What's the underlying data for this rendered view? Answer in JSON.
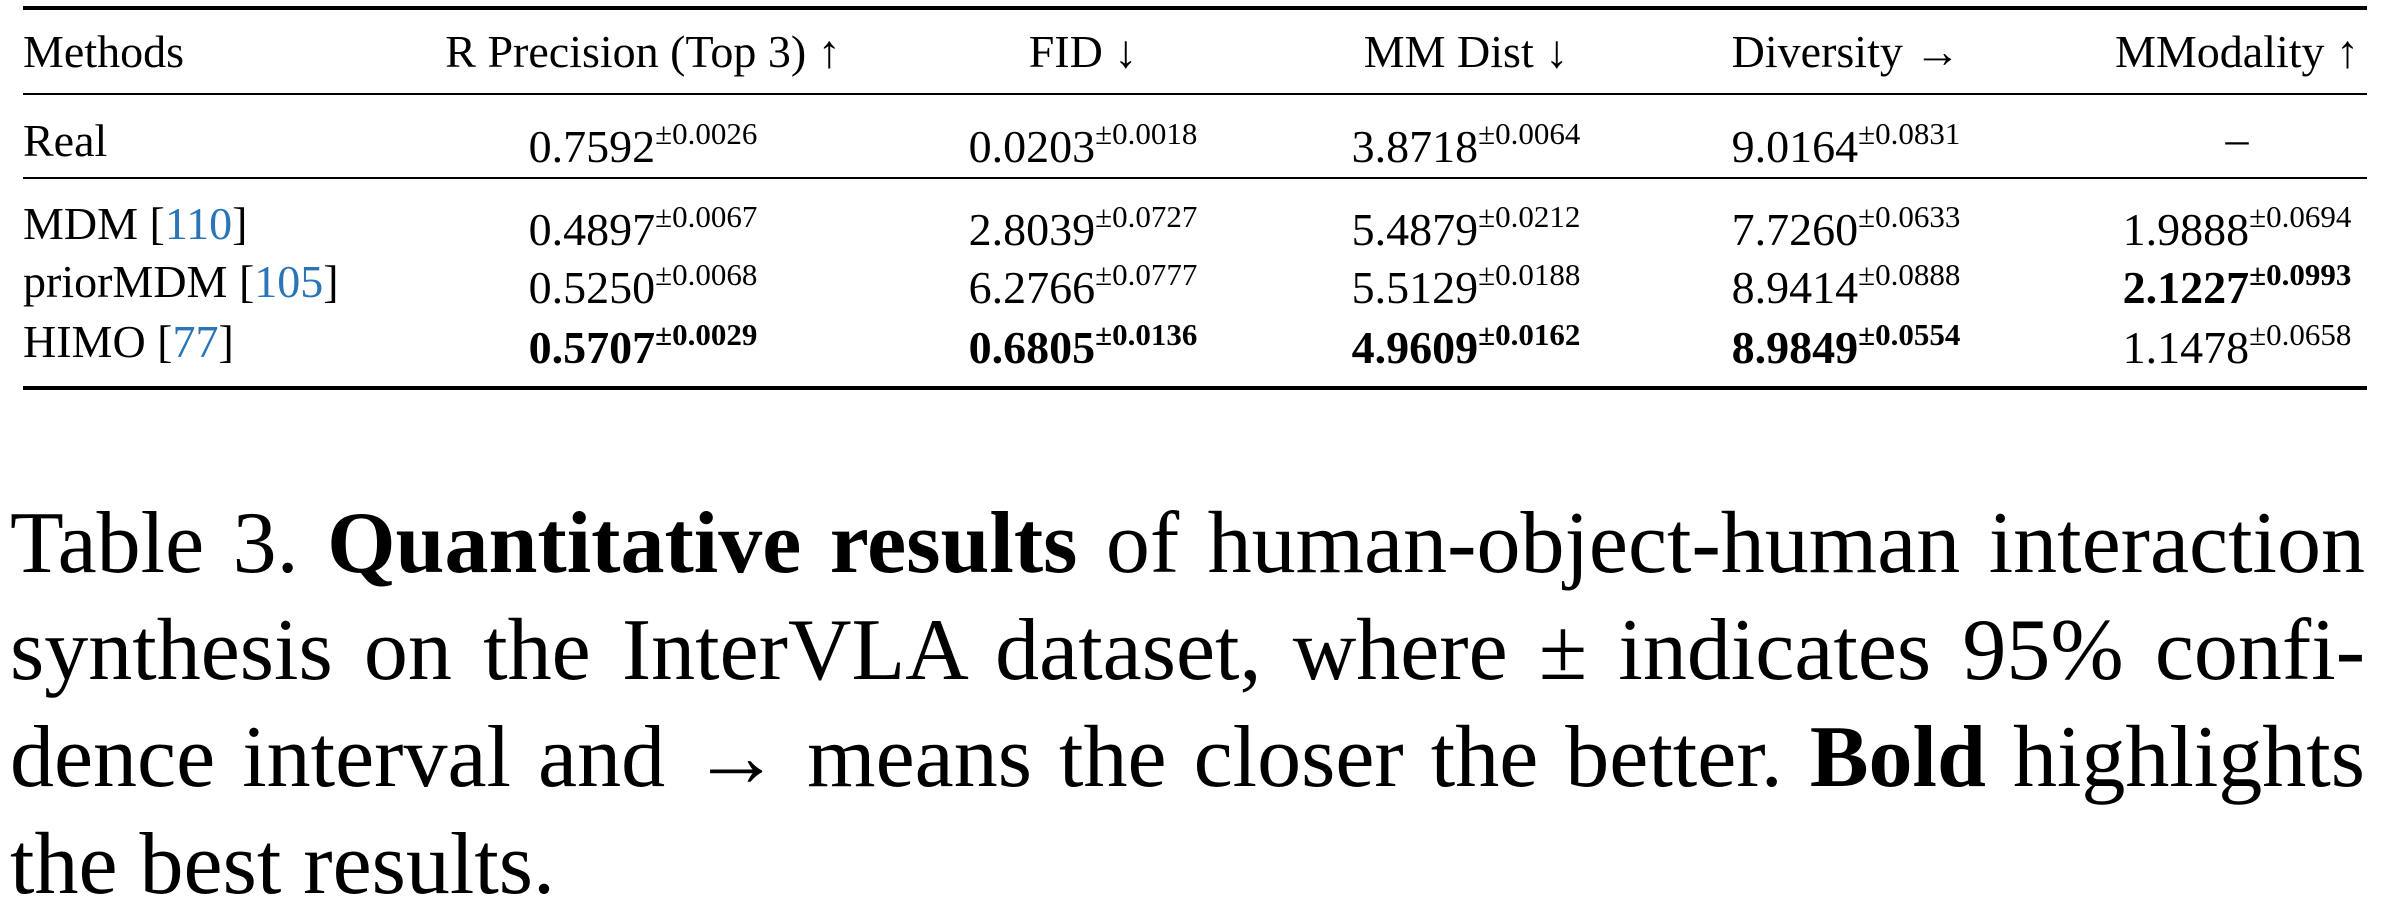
{
  "table": {
    "header": [
      "Methods",
      "R Precision (Top 3) ↑",
      "FID ↓",
      "MM Dist ↓",
      "Diversity →",
      "MModality ↑"
    ],
    "groups": [
      [
        {
          "method": [
            {
              "text": "Real"
            }
          ],
          "cells": [
            {
              "value": "0.7592",
              "pm": "±0.0026"
            },
            {
              "value": "0.0203",
              "pm": "±0.0018"
            },
            {
              "value": "3.8718",
              "pm": "±0.0064"
            },
            {
              "value": "9.0164",
              "pm": "±0.0831"
            },
            {
              "value": "–"
            }
          ]
        }
      ],
      [
        {
          "method": [
            {
              "text": "MDM ["
            },
            {
              "text": "110",
              "link": true
            },
            {
              "text": "]"
            }
          ],
          "cells": [
            {
              "value": "0.4897",
              "pm": "±0.0067"
            },
            {
              "value": "2.8039",
              "pm": "±0.0727"
            },
            {
              "value": "5.4879",
              "pm": "±0.0212"
            },
            {
              "value": "7.7260",
              "pm": "±0.0633"
            },
            {
              "value": "1.9888",
              "pm": "±0.0694"
            }
          ]
        },
        {
          "method": [
            {
              "text": "priorMDM ["
            },
            {
              "text": "105",
              "link": true
            },
            {
              "text": "]"
            }
          ],
          "cells": [
            {
              "value": "0.5250",
              "pm": "±0.0068"
            },
            {
              "value": "6.2766",
              "pm": "±0.0777"
            },
            {
              "value": "5.5129",
              "pm": "±0.0188"
            },
            {
              "value": "8.9414",
              "pm": "±0.0888"
            },
            {
              "value": "2.1227",
              "pm": "±0.0993",
              "bold": true
            }
          ]
        },
        {
          "method": [
            {
              "text": "HIMO ["
            },
            {
              "text": "77",
              "link": true
            },
            {
              "text": "]"
            }
          ],
          "cells": [
            {
              "value": "0.5707",
              "pm": "±0.0029",
              "bold": true
            },
            {
              "value": "0.6805",
              "pm": "±0.0136",
              "bold": true
            },
            {
              "value": "4.9609",
              "pm": "±0.0162",
              "bold": true
            },
            {
              "value": "8.9849",
              "pm": "±0.0554",
              "bold": true
            },
            {
              "value": "1.1478",
              "pm": "±0.0658"
            }
          ]
        }
      ]
    ]
  },
  "caption": {
    "lines": [
      [
        {
          "text": "Table 3. "
        },
        {
          "text": "Quantitative results",
          "bold": true
        },
        {
          "text": " of human-object-human interaction"
        }
      ],
      [
        {
          "text": "synthesis on the InterVLA dataset, where ± indicates 95% confi-"
        }
      ],
      [
        {
          "text": "dence interval and → means the closer the better. "
        },
        {
          "text": "Bold",
          "bold": true
        },
        {
          "text": " highlights"
        }
      ],
      [
        {
          "text": "the best results."
        }
      ]
    ]
  }
}
